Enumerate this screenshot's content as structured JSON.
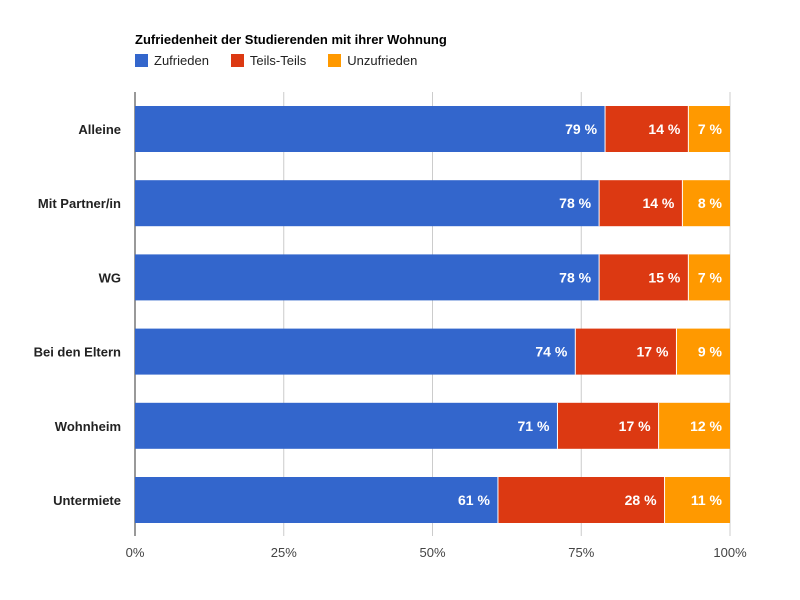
{
  "chart_data": {
    "type": "bar",
    "orientation": "horizontal",
    "stacked": true,
    "title": "Zufriedenheit der Studierenden mit ihrer Wohnung",
    "categories": [
      "Alleine",
      "Mit Partner/in",
      "WG",
      "Bei den Eltern",
      "Wohnheim",
      "Untermiete"
    ],
    "series": [
      {
        "name": "Zufrieden",
        "color": "#3366cc",
        "values": [
          79,
          78,
          78,
          74,
          71,
          61
        ]
      },
      {
        "name": "Teils-Teils",
        "color": "#dc3912",
        "values": [
          14,
          14,
          15,
          17,
          17,
          28
        ]
      },
      {
        "name": "Unzufrieden",
        "color": "#ff9900",
        "values": [
          7,
          8,
          7,
          9,
          12,
          11
        ]
      }
    ],
    "value_suffix": " %",
    "xlim": [
      0,
      100
    ],
    "x_ticks": [
      "0%",
      "25%",
      "50%",
      "75%",
      "100%"
    ],
    "x_tick_values": [
      0,
      25,
      50,
      75,
      100
    ],
    "grid": true,
    "legend_position": "top"
  }
}
